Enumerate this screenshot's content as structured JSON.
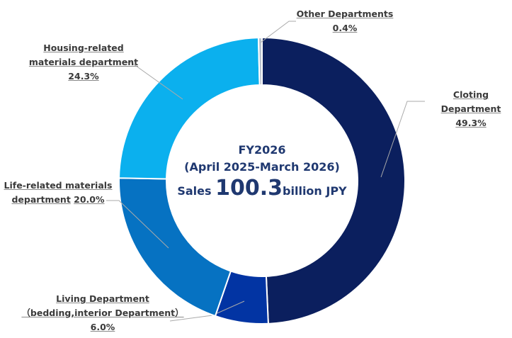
{
  "chart_data": {
    "type": "donut",
    "categories": [
      "Cloting Department",
      "Living Department\n（bedding,interior Department）",
      "Life-related materials\ndepartment",
      "Housing-related\nmaterials department",
      "Other Departments"
    ],
    "values": [
      49.3,
      6.0,
      20.0,
      24.3,
      0.4
    ],
    "value_labels": [
      "49.3%",
      "6.0%",
      "20.0%",
      "24.3%",
      "0.4%"
    ],
    "colors": [
      "#0b1f5e",
      "#0234a3",
      "#0672c2",
      "#0bb0ee",
      "#b8c0cc"
    ],
    "center": {
      "line1": "FY2026",
      "line2": "(April 2025-March 2026)",
      "prefix": "Sales",
      "amount": 100.3,
      "unit": "billion JPY"
    }
  }
}
